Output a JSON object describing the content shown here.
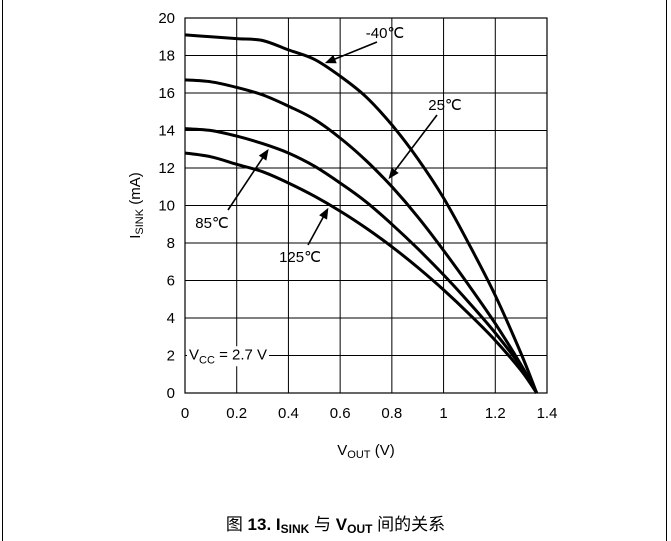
{
  "chart_data": {
    "type": "line",
    "xlabel": "V_OUT (V)",
    "xlabel_main": "V",
    "xlabel_sub": "OUT",
    "xlabel_tail": " (V)",
    "ylabel": "I_SINK (mA)",
    "ylabel_main": "I",
    "ylabel_sub": "SINK",
    "ylabel_tail": " (mA)",
    "xlim": [
      0,
      1.4
    ],
    "ylim": [
      0,
      20
    ],
    "x_ticks": [
      "0",
      "0.2",
      "0.4",
      "0.6",
      "0.8",
      "1",
      "1.2",
      "1.4"
    ],
    "y_ticks": [
      "0",
      "2",
      "4",
      "6",
      "8",
      "10",
      "12",
      "14",
      "16",
      "18",
      "20"
    ],
    "grid": true,
    "annotation": {
      "v": "V",
      "sub": "CC",
      "rest": " = 2.7 V"
    },
    "series": [
      {
        "name": "-40℃",
        "x": [
          0,
          0.1,
          0.2,
          0.3,
          0.4,
          0.5,
          0.6,
          0.7,
          0.8,
          0.9,
          1.0,
          1.1,
          1.2,
          1.3,
          1.36
        ],
        "y": [
          19.1,
          19.0,
          18.9,
          18.8,
          18.3,
          17.8,
          16.9,
          15.8,
          14.3,
          12.5,
          10.4,
          7.9,
          5.2,
          2.1,
          0
        ]
      },
      {
        "name": "25℃",
        "x": [
          0,
          0.1,
          0.2,
          0.3,
          0.4,
          0.5,
          0.6,
          0.7,
          0.8,
          0.9,
          1.0,
          1.1,
          1.2,
          1.3,
          1.36
        ],
        "y": [
          16.7,
          16.6,
          16.3,
          15.9,
          15.3,
          14.6,
          13.6,
          12.4,
          11.0,
          9.4,
          7.6,
          5.7,
          3.7,
          1.5,
          0
        ]
      },
      {
        "name": "85℃",
        "x": [
          0,
          0.1,
          0.2,
          0.3,
          0.4,
          0.5,
          0.6,
          0.7,
          0.8,
          0.9,
          1.0,
          1.1,
          1.2,
          1.3,
          1.36
        ],
        "y": [
          14.1,
          14.0,
          13.7,
          13.3,
          12.8,
          12.1,
          11.2,
          10.2,
          9.0,
          7.7,
          6.3,
          4.8,
          3.2,
          1.4,
          0
        ]
      },
      {
        "name": "125℃",
        "x": [
          0,
          0.1,
          0.2,
          0.3,
          0.4,
          0.5,
          0.6,
          0.7,
          0.8,
          0.9,
          1.0,
          1.1,
          1.2,
          1.3,
          1.36
        ],
        "y": [
          12.8,
          12.6,
          12.2,
          11.8,
          11.2,
          10.5,
          9.7,
          8.8,
          7.8,
          6.7,
          5.5,
          4.2,
          2.8,
          1.2,
          0
        ]
      }
    ],
    "labels": [
      {
        "text": "-40℃",
        "series": "-40℃"
      },
      {
        "text": "25℃",
        "series": "25℃"
      },
      {
        "text": "85℃",
        "series": "85℃"
      },
      {
        "text": "125℃",
        "series": "125℃"
      }
    ]
  },
  "caption": {
    "prefix": "图 ",
    "number": "13. I",
    "sub1": "SINK",
    "mid": " 与 ",
    "v": "V",
    "sub2": "OUT",
    "suffix": " 间的关系"
  }
}
